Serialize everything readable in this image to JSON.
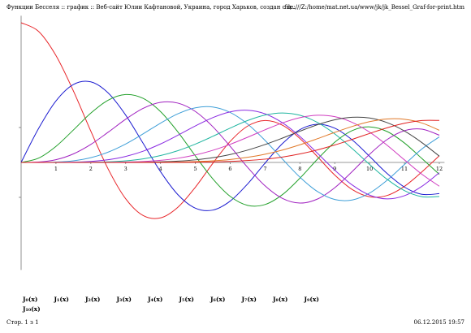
{
  "header": {
    "title": "Функции Бесселя :: график :: Веб-сайт Юлии Кафтановой, Украина, город Харьков, создан с ц...",
    "url": "file:///Z:/home/mat.net.ua/www/jk/jk_Bessel_Graf-for-print.htm"
  },
  "footer": {
    "page": "Стор. 1 з 1",
    "date": "06.12.2015 19:57"
  },
  "chart_data": {
    "type": "line",
    "x": [
      0,
      0.5,
      1,
      1.5,
      2,
      2.5,
      3,
      3.5,
      4,
      4.5,
      5,
      5.5,
      6,
      6.5,
      7,
      7.5,
      8,
      8.5,
      9,
      9.5,
      10,
      10.5,
      11,
      11.5,
      12
    ],
    "xlim": [
      0,
      12.15
    ],
    "xticks": [
      1,
      2,
      3,
      4,
      5,
      6,
      7,
      8,
      9,
      10,
      11,
      12
    ],
    "ylim": [
      -0.77,
      1.05
    ],
    "yticks": [
      -0.25,
      0.25
    ],
    "series": [
      {
        "name": "J₀(x)",
        "color": "#e8262a",
        "values": [
          1,
          0.9385,
          0.7652,
          0.5118,
          0.2239,
          -0.0484,
          -0.2601,
          -0.3801,
          -0.3971,
          -0.3205,
          -0.1776,
          -0.0068,
          0.1506,
          0.2601,
          0.3001,
          0.2663,
          0.1717,
          0.0419,
          -0.0903,
          -0.1939,
          -0.2459,
          -0.2366,
          -0.1712,
          -0.0677,
          0.0477
        ]
      },
      {
        "name": "J₁(x)",
        "color": "#1c1cd0",
        "values": [
          0,
          0.2423,
          0.4401,
          0.5579,
          0.5767,
          0.4971,
          0.3391,
          0.1374,
          -0.066,
          -0.2311,
          -0.3276,
          -0.3414,
          -0.2767,
          -0.1538,
          -0.0047,
          0.1352,
          0.2346,
          0.2731,
          0.2453,
          0.1613,
          0.0435,
          -0.0789,
          -0.1768,
          -0.2284,
          -0.2234
        ]
      },
      {
        "name": "J₂(x)",
        "color": "#22a02a",
        "values": [
          0,
          0.0306,
          0.1149,
          0.2321,
          0.3528,
          0.4461,
          0.4861,
          0.4586,
          0.3641,
          0.2178,
          0.0466,
          -0.1173,
          -0.2429,
          -0.3074,
          -0.3014,
          -0.2303,
          -0.113,
          0.0224,
          0.1448,
          0.2279,
          0.2546,
          0.2216,
          0.139,
          0.028,
          -0.0849
        ]
      },
      {
        "name": "J₃(x)",
        "color": "#a020c0",
        "values": [
          0,
          0.0026,
          0.0196,
          0.061,
          0.1289,
          0.2167,
          0.3091,
          0.3867,
          0.4302,
          0.4247,
          0.3648,
          0.2561,
          0.1148,
          -0.0354,
          -0.1676,
          -0.258,
          -0.2911,
          -0.2626,
          -0.1809,
          -0.0653,
          0.0584,
          0.1633,
          0.2273,
          0.2381,
          0.1951
        ]
      },
      {
        "name": "J₄(x)",
        "color": "#3f9fd8",
        "values": [
          0,
          0.0002,
          0.0025,
          0.0118,
          0.034,
          0.074,
          0.132,
          0.2043,
          0.2811,
          0.3485,
          0.3912,
          0.3967,
          0.3576,
          0.2747,
          0.1578,
          0.0239,
          -0.1054,
          -0.2078,
          -0.2655,
          -0.2691,
          -0.2196,
          -0.1283,
          -0.015,
          0.0962,
          0.1825
        ]
      },
      {
        "name": "J₅(x)",
        "color": "#8a2be2",
        "values": [
          0,
          0,
          0.0002,
          0.0018,
          0.007,
          0.0195,
          0.043,
          0.0803,
          0.1321,
          0.1949,
          0.2611,
          0.3209,
          0.3621,
          0.3735,
          0.3479,
          0.2835,
          0.1858,
          0.067,
          -0.055,
          -0.1613,
          -0.2341,
          -0.2611,
          -0.2383,
          -0.1712,
          -0.0735
        ]
      },
      {
        "name": "J₆(x)",
        "color": "#1fb5a0",
        "values": [
          0,
          0,
          0,
          0.0002,
          0.0012,
          0.0042,
          0.0114,
          0.0254,
          0.0491,
          0.0843,
          0.131,
          0.1868,
          0.2458,
          0.2999,
          0.3392,
          0.3541,
          0.3376,
          0.2866,
          0.2043,
          0.0993,
          -0.0145,
          -0.1204,
          -0.2016,
          -0.2451,
          -0.2437
        ]
      },
      {
        "name": "J₇(x)",
        "color": "#d03cc0",
        "values": [
          0,
          0,
          0,
          0,
          0.0002,
          0.0008,
          0.0025,
          0.0067,
          0.0152,
          0.03,
          0.0534,
          0.0867,
          0.1296,
          0.1802,
          0.2336,
          0.2831,
          0.3206,
          0.3376,
          0.3275,
          0.2867,
          0.2167,
          0.1235,
          0.0184,
          -0.0846,
          -0.1703
        ]
      },
      {
        "name": "J₈(x)",
        "color": "#444444",
        "values": [
          0,
          0,
          0,
          0,
          0,
          0.0001,
          0.0005,
          0.0015,
          0.004,
          0.0091,
          0.0184,
          0.0337,
          0.0565,
          0.0882,
          0.128,
          0.1743,
          0.2235,
          0.2694,
          0.3051,
          0.3232,
          0.3179,
          0.2851,
          0.225,
          0.1421,
          0.0451
        ]
      },
      {
        "name": "J₉(x)",
        "color": "#e07828",
        "values": [
          0,
          0,
          0,
          0,
          0,
          0,
          0.0001,
          0.0003,
          0.0009,
          0.0024,
          0.0055,
          0.0113,
          0.0212,
          0.0369,
          0.0589,
          0.0887,
          0.1263,
          0.1695,
          0.2149,
          0.2576,
          0.2919,
          0.3109,
          0.3089,
          0.2823,
          0.2304
        ]
      },
      {
        "name": "J₁₀(x)",
        "color": "#e02020",
        "values": [
          0,
          0,
          0,
          0,
          0,
          0,
          0,
          0.0001,
          0.0002,
          0.0006,
          0.0015,
          0.0033,
          0.007,
          0.0135,
          0.0235,
          0.0386,
          0.0608,
          0.0895,
          0.1247,
          0.1649,
          0.2075,
          0.2479,
          0.2804,
          0.2998,
          0.3005
        ]
      }
    ]
  }
}
